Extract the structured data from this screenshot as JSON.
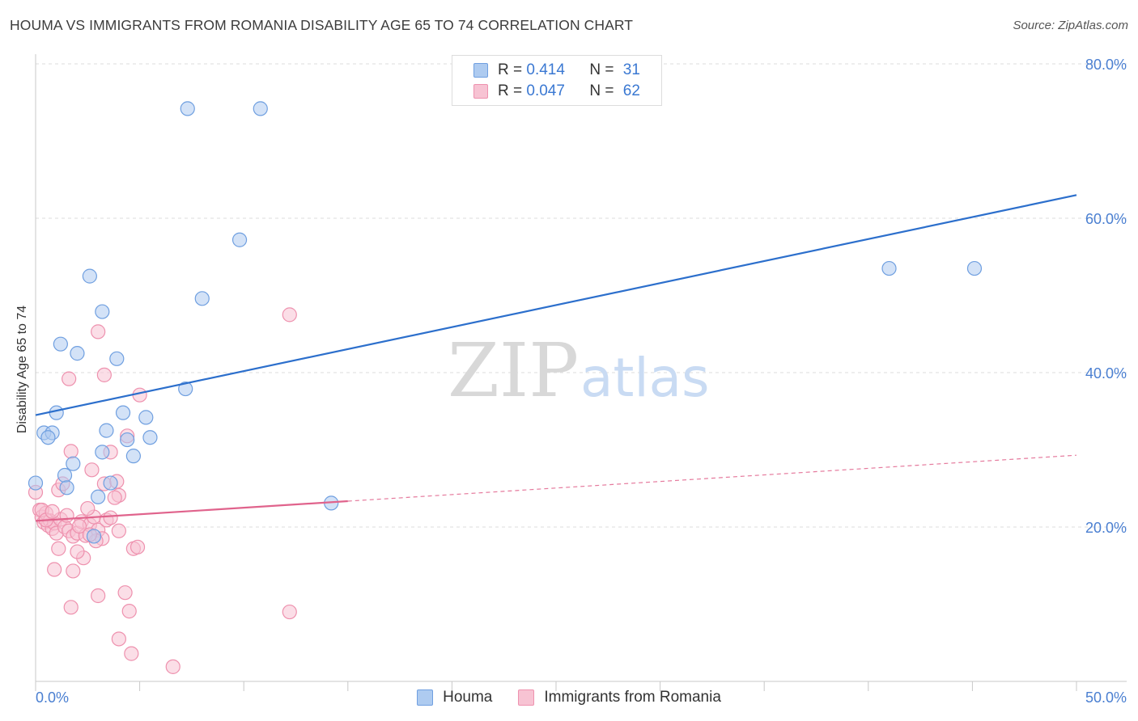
{
  "title": "HOUMA VS IMMIGRANTS FROM ROMANIA DISABILITY AGE 65 TO 74 CORRELATION CHART",
  "source": "Source: ZipAtlas.com",
  "watermark": {
    "part1": "ZIP",
    "part2": "atlas"
  },
  "legend": {
    "rows": [
      {
        "r_label": "R =",
        "r_value": "0.414",
        "n_label": "N =",
        "n_value": "31",
        "color": "#aecbf0",
        "border": "#6f9fe0"
      },
      {
        "r_label": "R =",
        "r_value": "0.047",
        "n_label": "N =",
        "n_value": "62",
        "color": "#f7c3d3",
        "border": "#ee91ae"
      }
    ]
  },
  "bottom_legend": [
    {
      "label": "Houma",
      "color": "#aecbf0",
      "border": "#6f9fe0"
    },
    {
      "label": "Immigrants from Romania",
      "color": "#f7c3d3",
      "border": "#ee91ae"
    }
  ],
  "chart_data": {
    "type": "scatter",
    "title": "HOUMA VS IMMIGRANTS FROM ROMANIA DISABILITY AGE 65 TO 74 CORRELATION CHART",
    "xlabel": "",
    "ylabel": "Disability Age 65 to 74",
    "xlim": [
      0,
      50
    ],
    "ylim": [
      0,
      80
    ],
    "x_tick_labels": [
      {
        "value": 0,
        "label": "0.0%"
      },
      {
        "value": 50,
        "label": "50.0%"
      }
    ],
    "y_tick_labels": [
      {
        "value": 20,
        "label": "20.0%"
      },
      {
        "value": 40,
        "label": "40.0%"
      },
      {
        "value": 60,
        "label": "60.0%"
      },
      {
        "value": 80,
        "label": "80.0%"
      }
    ],
    "x_minor_ticks": [
      0,
      5,
      10,
      15,
      20,
      25,
      30,
      35,
      40,
      45,
      50
    ],
    "series": [
      {
        "name": "Houma",
        "color": "#aecbf0",
        "stroke": "#6f9fe0",
        "trend": {
          "x": [
            0,
            50
          ],
          "y": [
            34.5,
            63.0
          ],
          "color": "#2c6fcc",
          "dashed_from": null
        },
        "points": [
          [
            7.3,
            74.2
          ],
          [
            10.8,
            74.2
          ],
          [
            9.8,
            57.2
          ],
          [
            2.6,
            52.5
          ],
          [
            8.0,
            49.6
          ],
          [
            3.2,
            47.9
          ],
          [
            1.2,
            43.7
          ],
          [
            2.0,
            42.5
          ],
          [
            3.9,
            41.8
          ],
          [
            7.2,
            37.9
          ],
          [
            1.0,
            34.8
          ],
          [
            4.2,
            34.8
          ],
          [
            5.3,
            34.2
          ],
          [
            0.4,
            32.2
          ],
          [
            0.8,
            32.2
          ],
          [
            3.4,
            32.5
          ],
          [
            0.6,
            31.6
          ],
          [
            4.4,
            31.3
          ],
          [
            5.5,
            31.6
          ],
          [
            3.2,
            29.7
          ],
          [
            4.7,
            29.2
          ],
          [
            1.8,
            28.2
          ],
          [
            1.4,
            26.7
          ],
          [
            3.6,
            25.7
          ],
          [
            0.0,
            25.7
          ],
          [
            1.5,
            25.1
          ],
          [
            3.0,
            23.9
          ],
          [
            14.2,
            23.1
          ],
          [
            2.8,
            18.8
          ],
          [
            41.0,
            53.5
          ],
          [
            45.1,
            53.5
          ]
        ]
      },
      {
        "name": "Immigrants from Romania",
        "color": "#f7c3d3",
        "stroke": "#ee91ae",
        "trend": {
          "x": [
            0,
            50
          ],
          "y": [
            20.8,
            29.3
          ],
          "color": "#e0638c",
          "dashed_from": 15
        },
        "points": [
          [
            0.0,
            24.5
          ],
          [
            0.2,
            22.2
          ],
          [
            0.3,
            21.3
          ],
          [
            0.4,
            20.6
          ],
          [
            0.5,
            21.8
          ],
          [
            0.6,
            20.2
          ],
          [
            0.7,
            20.8
          ],
          [
            0.8,
            19.8
          ],
          [
            0.9,
            20.5
          ],
          [
            1.0,
            19.2
          ],
          [
            1.2,
            21.0
          ],
          [
            1.4,
            20.0
          ],
          [
            1.6,
            19.5
          ],
          [
            1.8,
            18.8
          ],
          [
            2.0,
            19.2
          ],
          [
            2.2,
            20.7
          ],
          [
            2.4,
            18.9
          ],
          [
            2.6,
            20.3
          ],
          [
            2.8,
            21.3
          ],
          [
            3.0,
            19.6
          ],
          [
            3.2,
            18.5
          ],
          [
            3.4,
            20.9
          ],
          [
            3.6,
            21.2
          ],
          [
            1.1,
            24.8
          ],
          [
            1.3,
            25.6
          ],
          [
            2.7,
            27.4
          ],
          [
            3.3,
            25.6
          ],
          [
            3.9,
            25.9
          ],
          [
            4.0,
            24.1
          ],
          [
            3.8,
            23.8
          ],
          [
            3.6,
            29.7
          ],
          [
            1.7,
            29.8
          ],
          [
            4.4,
            31.8
          ],
          [
            5.0,
            37.1
          ],
          [
            1.6,
            39.2
          ],
          [
            3.3,
            39.7
          ],
          [
            3.0,
            45.3
          ],
          [
            12.2,
            47.5
          ],
          [
            2.3,
            16.0
          ],
          [
            1.1,
            17.2
          ],
          [
            2.0,
            16.8
          ],
          [
            4.7,
            17.2
          ],
          [
            4.9,
            17.4
          ],
          [
            4.0,
            19.5
          ],
          [
            2.5,
            22.4
          ],
          [
            0.9,
            14.5
          ],
          [
            1.8,
            14.3
          ],
          [
            3.0,
            11.1
          ],
          [
            4.3,
            11.5
          ],
          [
            1.7,
            9.6
          ],
          [
            4.5,
            9.1
          ],
          [
            12.2,
            9.0
          ],
          [
            4.0,
            5.5
          ],
          [
            4.6,
            3.6
          ],
          [
            6.6,
            1.9
          ],
          [
            0.3,
            22.2
          ],
          [
            0.5,
            20.9
          ],
          [
            1.5,
            21.5
          ],
          [
            2.1,
            20.1
          ],
          [
            2.9,
            18.2
          ],
          [
            0.8,
            22.0
          ],
          [
            2.6,
            19.0
          ]
        ]
      }
    ]
  }
}
